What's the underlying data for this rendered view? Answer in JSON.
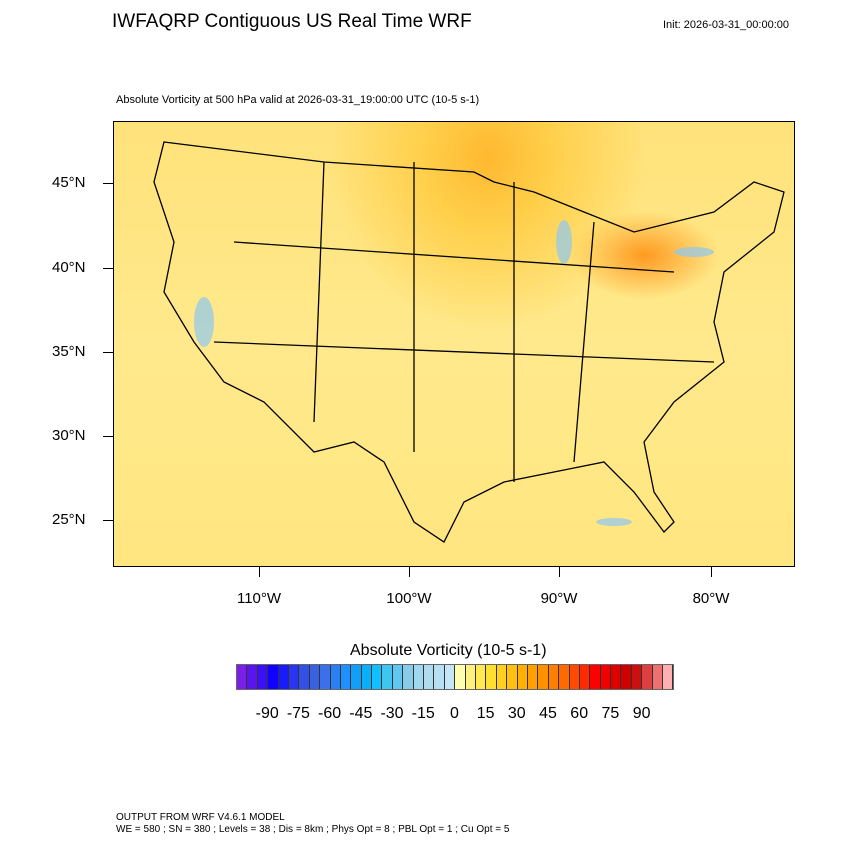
{
  "header": {
    "title": "IWFAQRP Contiguous US Real Time WRF",
    "init": "Init: 2026-03-31_00:00:00"
  },
  "plot": {
    "subtitle": "Absolute Vorticity at 500 hPa valid at 2026-03-31_19:00:00 UTC   (10-5 s-1)",
    "lat_labels": [
      "45°N",
      "40°N",
      "35°N",
      "30°N",
      "25°N"
    ],
    "lon_labels": [
      "110°W",
      "100°W",
      "90°W",
      "80°W"
    ]
  },
  "colorbar": {
    "title": "Absolute Vorticity  (10-5 s-1)",
    "labels": [
      "-90",
      "-75",
      "-60",
      "-45",
      "-30",
      "-15",
      "0",
      "15",
      "30",
      "45",
      "60",
      "75",
      "90"
    ],
    "colors": [
      "#7a1ee8",
      "#5a14f0",
      "#3a10f5",
      "#1000ff",
      "#1a1aff",
      "#2a35f0",
      "#3350e6",
      "#3a62e0",
      "#3a70ea",
      "#2a80f2",
      "#1e90ff",
      "#10a0fa",
      "#08b0f8",
      "#10c0ff",
      "#40c4f0",
      "#60c8f0",
      "#88ccea",
      "#a0d8f0",
      "#b0dcf0",
      "#b8e0f2",
      "#c4e6f6",
      "#ffffb0",
      "#fff080",
      "#ffe850",
      "#ffe030",
      "#ffd020",
      "#ffc010",
      "#ffb000",
      "#ffa000",
      "#ff9000",
      "#ff7f00",
      "#ff6a00",
      "#ff4a00",
      "#ff2a00",
      "#ff0000",
      "#f00000",
      "#e00000",
      "#d00000",
      "#cc1010",
      "#dd4040",
      "#ee7070",
      "#ffb0b0"
    ]
  },
  "footer": {
    "line1": "OUTPUT FROM WRF V4.6.1 MODEL",
    "line2": "WE = 580 ; SN = 380 ; Levels = 38 ; Dis = 8km ; Phys Opt = 8 ; PBL Opt = 1 ; Cu Opt = 5"
  }
}
